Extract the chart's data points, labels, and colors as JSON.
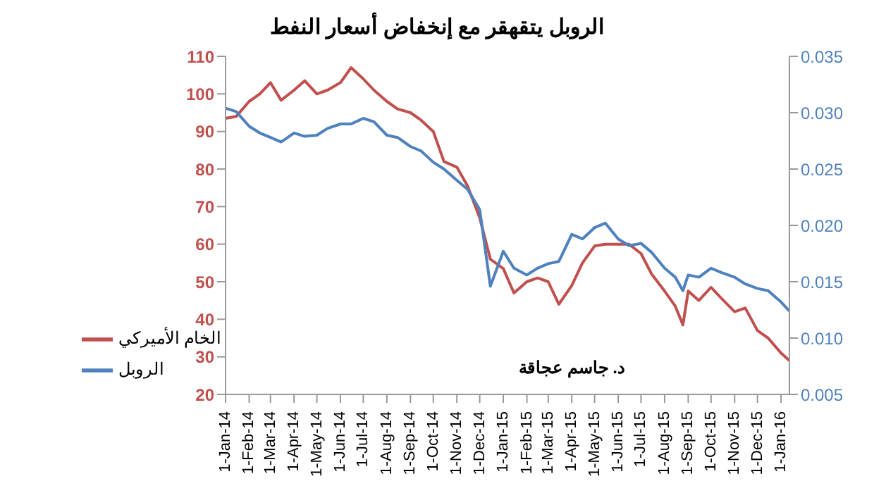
{
  "chart_data": {
    "type": "line",
    "title": "الروبل يتقهقر مع إنخفاض أسعار النفط",
    "annotations": [
      "د. جاسم عجاقة"
    ],
    "x": [
      "2014-01-01",
      "2014-01-15",
      "2014-02-01",
      "2014-02-15",
      "2014-03-01",
      "2014-03-15",
      "2014-04-01",
      "2014-04-15",
      "2014-05-01",
      "2014-05-15",
      "2014-06-01",
      "2014-06-15",
      "2014-07-01",
      "2014-07-15",
      "2014-08-01",
      "2014-08-15",
      "2014-09-01",
      "2014-09-15",
      "2014-10-01",
      "2014-10-15",
      "2014-11-01",
      "2014-11-15",
      "2014-12-01",
      "2014-12-15",
      "2015-01-01",
      "2015-01-15",
      "2015-02-01",
      "2015-02-15",
      "2015-03-01",
      "2015-03-15",
      "2015-04-01",
      "2015-04-15",
      "2015-05-01",
      "2015-05-15",
      "2015-06-01",
      "2015-06-15",
      "2015-07-01",
      "2015-07-15",
      "2015-08-01",
      "2015-08-15",
      "2015-08-25",
      "2015-09-01",
      "2015-09-15",
      "2015-10-01",
      "2015-10-15",
      "2015-11-01",
      "2015-11-15",
      "2015-12-01",
      "2015-12-15",
      "2016-01-01",
      "2016-01-12"
    ],
    "series": [
      {
        "name": "الخام الأميركي",
        "color": "#c0504d",
        "values": [
          93.5,
          94,
          98,
          100,
          103,
          98.3,
          101,
          103.5,
          100,
          101,
          103,
          107,
          104,
          101,
          98,
          96,
          95,
          93,
          90,
          82,
          80.5,
          75.5,
          67,
          56,
          53.5,
          47,
          50,
          51,
          50,
          44,
          49,
          55,
          59.5,
          60,
          60,
          60,
          57.5,
          52,
          47.5,
          43.5,
          38.5,
          47.5,
          45,
          48.5,
          45.5,
          42,
          43,
          37,
          35,
          31,
          29
        ]
      },
      {
        "name": "الروبل",
        "color": "#4f81bd",
        "axis": "y2",
        "values": [
          0.0304,
          0.0301,
          0.0288,
          0.0282,
          0.0278,
          0.0274,
          0.0282,
          0.0279,
          0.028,
          0.0286,
          0.029,
          0.029,
          0.0295,
          0.0292,
          0.028,
          0.0278,
          0.027,
          0.0266,
          0.0256,
          0.025,
          0.024,
          0.0232,
          0.0214,
          0.0146,
          0.0177,
          0.0162,
          0.0156,
          0.0162,
          0.0166,
          0.0168,
          0.0192,
          0.0188,
          0.0198,
          0.0202,
          0.0188,
          0.0182,
          0.0184,
          0.0176,
          0.0162,
          0.0154,
          0.0142,
          0.0156,
          0.0154,
          0.0162,
          0.0158,
          0.0154,
          0.0148,
          0.0144,
          0.0142,
          0.0132,
          0.0124
        ]
      }
    ],
    "xlim": [
      "2014-01-01",
      "2016-01-12"
    ],
    "xticks": [
      {
        "value": "2014-01-01",
        "label": "1-Jan-14"
      },
      {
        "value": "2014-02-01",
        "label": "1-Feb-14"
      },
      {
        "value": "2014-03-01",
        "label": "1-Mar-14"
      },
      {
        "value": "2014-04-01",
        "label": "1-Apr-14"
      },
      {
        "value": "2014-05-01",
        "label": "1-May-14"
      },
      {
        "value": "2014-06-01",
        "label": "1-Jun-14"
      },
      {
        "value": "2014-07-01",
        "label": "1-Jul-14"
      },
      {
        "value": "2014-08-01",
        "label": "1-Aug-14"
      },
      {
        "value": "2014-09-01",
        "label": "1-Sep-14"
      },
      {
        "value": "2014-10-01",
        "label": "1-Oct-14"
      },
      {
        "value": "2014-11-01",
        "label": "1-Nov-14"
      },
      {
        "value": "2014-12-01",
        "label": "1-Dec-14"
      },
      {
        "value": "2015-01-01",
        "label": "1-Jan-15"
      },
      {
        "value": "2015-02-01",
        "label": "1-Feb-15"
      },
      {
        "value": "2015-03-01",
        "label": "1-Mar-15"
      },
      {
        "value": "2015-04-01",
        "label": "1-Apr-15"
      },
      {
        "value": "2015-05-01",
        "label": "1-May-15"
      },
      {
        "value": "2015-06-01",
        "label": "1-Jun-15"
      },
      {
        "value": "2015-07-01",
        "label": "1-Jul-15"
      },
      {
        "value": "2015-08-01",
        "label": "1-Aug-15"
      },
      {
        "value": "2015-09-01",
        "label": "1-Sep-15"
      },
      {
        "value": "2015-10-01",
        "label": "1-Oct-15"
      },
      {
        "value": "2015-11-01",
        "label": "1-Nov-15"
      },
      {
        "value": "2015-12-01",
        "label": "1-Dec-15"
      },
      {
        "value": "2016-01-01",
        "label": "1-Jan-16"
      }
    ],
    "ylim": [
      20,
      110
    ],
    "yticks": [
      20,
      30,
      40,
      50,
      60,
      70,
      80,
      90,
      100,
      110
    ],
    "y2lim": [
      0.005,
      0.035
    ],
    "y2ticks": [
      {
        "value": 0.005,
        "label": "0.005"
      },
      {
        "value": 0.01,
        "label": "0.010"
      },
      {
        "value": 0.015,
        "label": "0.015"
      },
      {
        "value": 0.02,
        "label": "0.020"
      },
      {
        "value": 0.025,
        "label": "0.025"
      },
      {
        "value": 0.03,
        "label": "0.030"
      },
      {
        "value": 0.035,
        "label": "0.035"
      }
    ],
    "grid": false,
    "legend": "bottom left",
    "marker": "none",
    "line_style": "solid"
  }
}
